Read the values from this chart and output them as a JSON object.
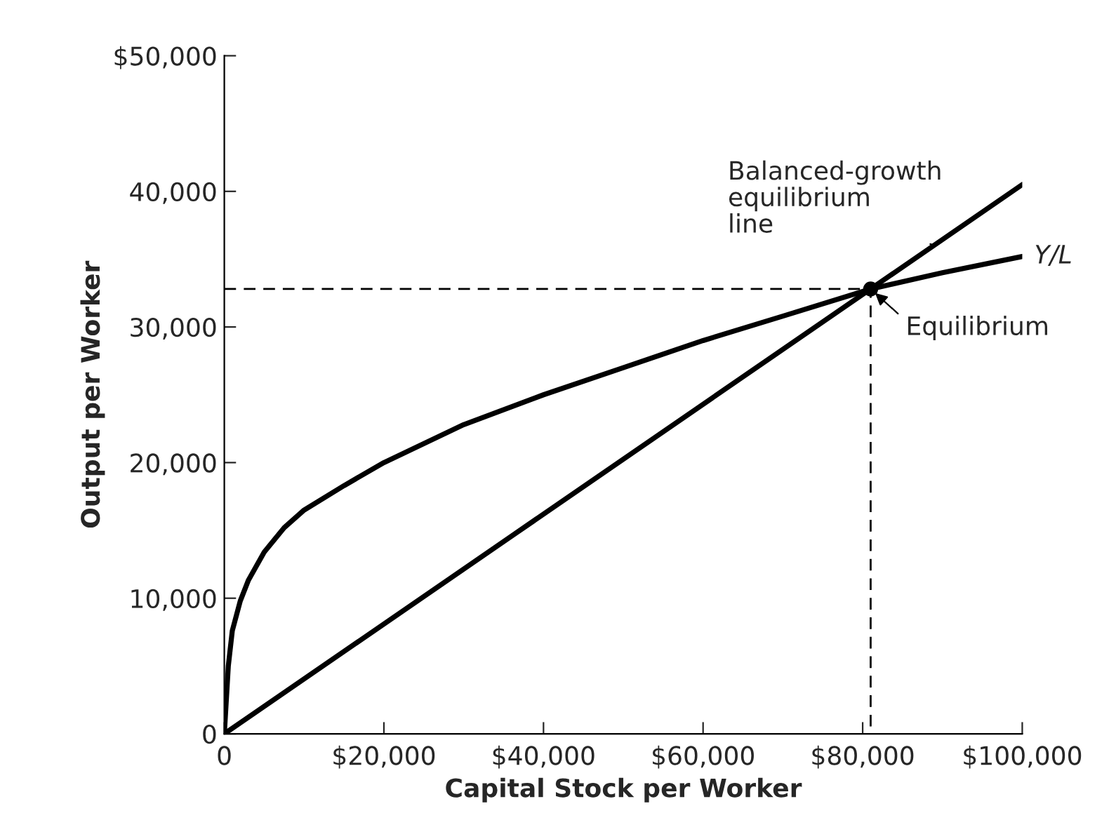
{
  "chart_data": {
    "type": "line",
    "xlabel": "Capital Stock per Worker",
    "ylabel": "Output per Worker",
    "xlim": [
      0,
      100000
    ],
    "ylim": [
      0,
      50000
    ],
    "xticks": [
      0,
      {
        "value": 20000,
        "label": "$20,000"
      },
      {
        "value": 40000,
        "label": "$40,000"
      },
      {
        "value": 60000,
        "label": "$60,000"
      },
      {
        "value": 80000,
        "label": "$80,000"
      },
      {
        "value": 100000,
        "label": "$100,000"
      }
    ],
    "yticks": [
      0,
      {
        "value": 10000,
        "label": "10,000"
      },
      {
        "value": 20000,
        "label": "20,000"
      },
      {
        "value": 30000,
        "label": "30,000"
      },
      {
        "value": 40000,
        "label": "40,000"
      },
      {
        "value": 50000,
        "label": "$50,000"
      }
    ],
    "grid": false,
    "legend": false,
    "series": [
      {
        "name": "Y/L",
        "color": "#000000",
        "x": [
          0,
          500,
          1000,
          2000,
          3000,
          5000,
          7500,
          10000,
          15000,
          20000,
          30000,
          40000,
          50000,
          60000,
          70000,
          81000,
          90000,
          100000
        ],
        "values": [
          0,
          5000,
          7600,
          9800,
          11300,
          13400,
          15200,
          16500,
          18300,
          20000,
          22800,
          25000,
          27000,
          29000,
          30800,
          32800,
          34000,
          35200
        ]
      },
      {
        "color": "#000000",
        "x": [
          0,
          100000
        ],
        "values": [
          0,
          40500
        ]
      },
      {
        "color": "#000000",
        "line_style": "dashed",
        "x": [
          0,
          81000,
          81000
        ],
        "values": [
          32800,
          32800,
          0
        ]
      },
      {
        "type": "scatter",
        "color": "#000000",
        "marker": "circle",
        "x": [
          81000
        ],
        "values": [
          32800
        ]
      }
    ],
    "annotations": [
      {
        "text": "Balanced-growth\nequilibrium\nline",
        "x": 89000,
        "y": 36000
      },
      {
        "text": "Equilibrium",
        "x": 81000,
        "y": 32800
      }
    ]
  }
}
